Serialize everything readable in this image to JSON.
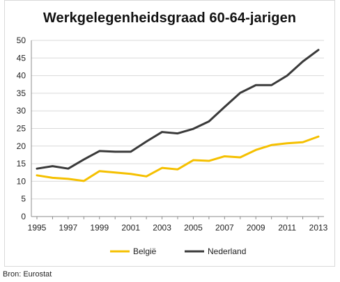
{
  "source": "Bron: Eurostat",
  "colors": {
    "belgie": "#f5c000",
    "nederland": "#3a3a3a",
    "axis": "#8c8c8c",
    "grid": "#d9d9d9"
  },
  "chart_data": {
    "type": "line",
    "title": "Werkgelegenheidsgraad 60-64-jarigen",
    "xlabel": "",
    "ylabel": "",
    "x": [
      1995,
      1996,
      1997,
      1998,
      1999,
      2000,
      2001,
      2002,
      2003,
      2004,
      2005,
      2006,
      2007,
      2008,
      2009,
      2010,
      2011,
      2012,
      2013
    ],
    "xticks": [
      "1995",
      "1997",
      "1999",
      "2001",
      "2003",
      "2005",
      "2007",
      "2009",
      "2011",
      "2013"
    ],
    "yticks": [
      "0",
      "5",
      "10",
      "15",
      "20",
      "25",
      "30",
      "35",
      "40",
      "45",
      "50"
    ],
    "ylim": [
      0,
      50
    ],
    "grid": "horizontal",
    "legend_position": "bottom",
    "series": [
      {
        "name": "België",
        "color": "#f5c000",
        "values": [
          11.7,
          11.0,
          10.7,
          10.1,
          12.9,
          12.5,
          12.1,
          11.4,
          13.8,
          13.4,
          16.0,
          15.8,
          17.1,
          16.8,
          18.9,
          20.3,
          20.8,
          21.1,
          22.7
        ]
      },
      {
        "name": "Nederland",
        "color": "#3a3a3a",
        "values": [
          13.6,
          14.3,
          13.6,
          16.2,
          18.6,
          18.4,
          18.4,
          21.3,
          24.0,
          23.6,
          24.9,
          27.0,
          31.1,
          35.1,
          37.3,
          37.3,
          40.0,
          44.0,
          47.3
        ]
      }
    ]
  }
}
